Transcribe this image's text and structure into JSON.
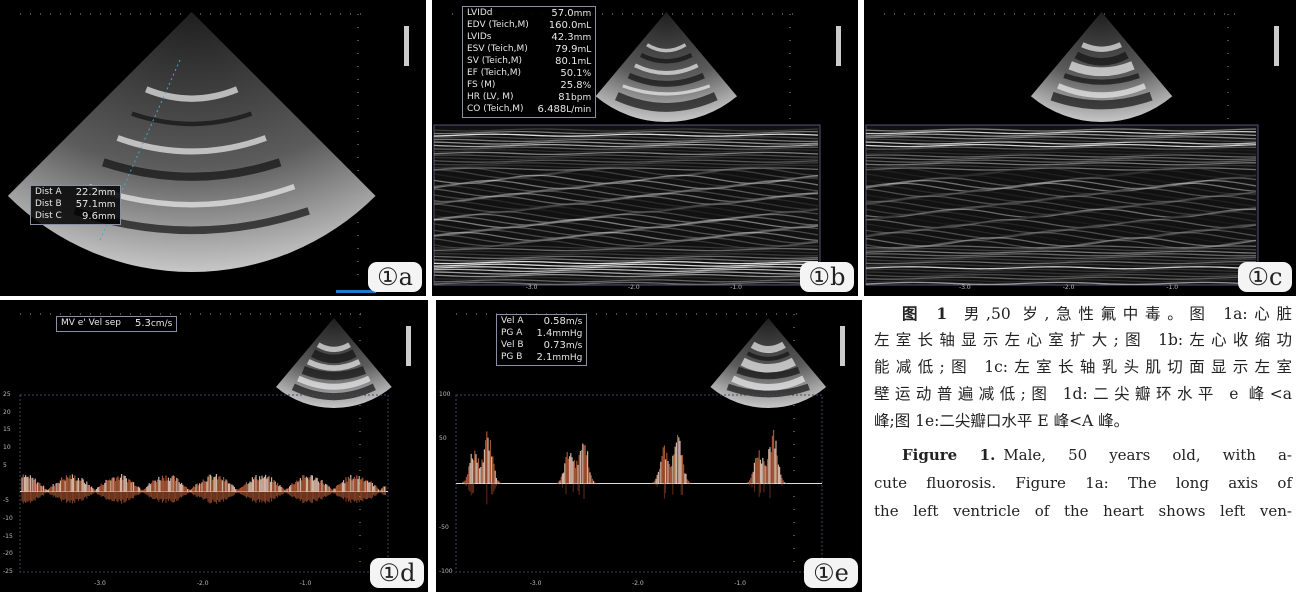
{
  "panels": [
    {
      "label": "①a",
      "kind": "sector",
      "measurements": [
        {
          "name": "Dist A",
          "value": "22.2",
          "unit": "mm"
        },
        {
          "name": "Dist B",
          "value": "57.1",
          "unit": "mm"
        },
        {
          "name": "Dist C",
          "value": "9.6",
          "unit": "mm"
        }
      ]
    },
    {
      "label": "①b",
      "kind": "mmode",
      "measurements": [
        {
          "name": "LVIDd",
          "value": "57.0",
          "unit": "mm"
        },
        {
          "name": "EDV (Teich,M)",
          "value": "160.0",
          "unit": "mL"
        },
        {
          "name": "LVIDs",
          "value": "42.3",
          "unit": "mm"
        },
        {
          "name": "ESV (Teich,M)",
          "value": "79.9",
          "unit": "mL"
        },
        {
          "name": "SV (Teich,M)",
          "value": "80.1",
          "unit": "mL"
        },
        {
          "name": "EF (Teich,M)",
          "value": "50.1",
          "unit": "%"
        },
        {
          "name": "FS (M)",
          "value": "25.8",
          "unit": "%"
        },
        {
          "name": "HR (LV, M)",
          "value": "81",
          "unit": "bpm"
        },
        {
          "name": "CO (Teich,M)",
          "value": "6.488",
          "unit": "L/min"
        }
      ],
      "time_labels": [
        "-3.0",
        "-2.0",
        "-1.0"
      ]
    },
    {
      "label": "①c",
      "kind": "mmode",
      "time_labels": [
        "-3.0",
        "-2.0",
        "-1.0"
      ]
    },
    {
      "label": "①d",
      "kind": "doppler",
      "measurements": [
        {
          "name": "MV e' Vel sep",
          "value": "5.3",
          "unit": "cm/s"
        }
      ],
      "scale_labels": [
        "25",
        "20",
        "15",
        "10",
        "5",
        "",
        "-5",
        "-10",
        "-15",
        "-20",
        "-25"
      ],
      "time_labels": [
        "-3.0",
        "-2.0",
        "-1.0"
      ]
    },
    {
      "label": "①e",
      "kind": "doppler",
      "measurements": [
        {
          "name": "Vel A",
          "value": "0.58",
          "unit": "m/s"
        },
        {
          "name": "PG A",
          "value": "1.4",
          "unit": "mmHg"
        },
        {
          "name": "Vel B",
          "value": "0.73",
          "unit": "m/s"
        },
        {
          "name": "PG B",
          "value": "2.1",
          "unit": "mmHg"
        }
      ],
      "scale_labels": [
        "100",
        "50",
        "",
        "-50",
        "-100"
      ],
      "time_labels": [
        "-3.0",
        "-2.0",
        "-1.0"
      ]
    }
  ],
  "caption": {
    "zh_lead": "图 1",
    "zh_lines": [
      "男,50 岁,急性氟中毒。图 1a:心脏",
      "左室长轴显示左心室扩大;图 1b:左心收缩功",
      "能减低;图 1c:左室长轴乳头肌切面显示左室",
      "壁运动普遍减低;图 1d:二尖瓣环水平 e 峰<a",
      "峰;图 1e:二尖瓣口水平 E 峰<A 峰。"
    ],
    "en_lead": "Figure 1.",
    "en_lines": [
      "Male, 50 years old, with a-",
      "cute fluorosis. Figure 1a: The long axis of",
      "the left ventricle of the heart shows left ven-"
    ]
  }
}
